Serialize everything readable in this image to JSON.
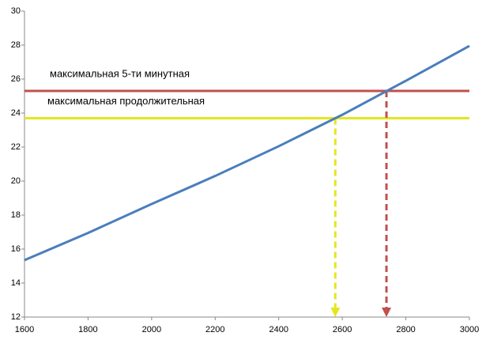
{
  "chart_data": {
    "type": "line",
    "x": [
      1600,
      1800,
      2000,
      2200,
      2400,
      2600,
      2800,
      3000
    ],
    "series": [
      {
        "color": "#4a7ebb",
        "values": [
          15.35,
          16.95,
          18.65,
          20.3,
          22.05,
          23.9,
          25.9,
          27.95
        ]
      }
    ],
    "hlines": [
      {
        "label": "максимальная 5-ти минутная",
        "value": 25.3,
        "color": "#c0504d"
      },
      {
        "label": "максимальная продолжительная",
        "value": 23.7,
        "color": "#e6e620"
      }
    ],
    "vlines": [
      {
        "value": 2578,
        "color": "#e6e620"
      },
      {
        "value": 2739,
        "color": "#c0504d"
      }
    ],
    "xlim": [
      1600,
      3000
    ],
    "xticks": [
      1600,
      1800,
      2000,
      2200,
      2400,
      2600,
      2800,
      3000
    ],
    "ylim": [
      12,
      30
    ],
    "yticks": [
      12,
      14,
      16,
      18,
      20,
      22,
      24,
      26,
      28,
      30
    ],
    "grid": false
  }
}
